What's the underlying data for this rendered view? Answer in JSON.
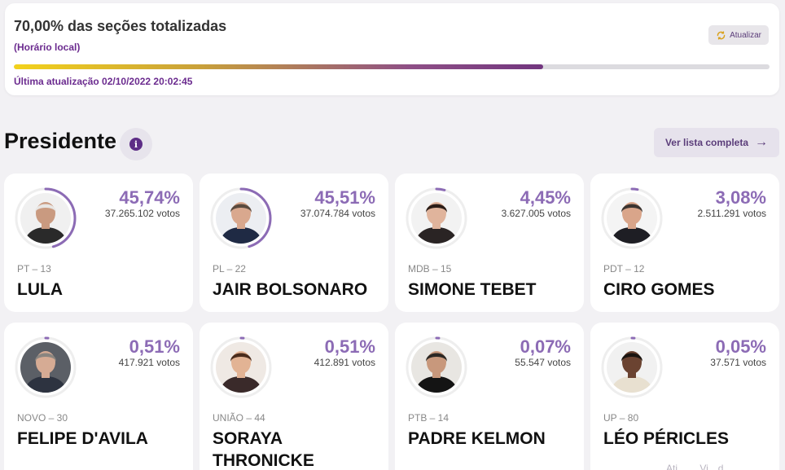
{
  "status": {
    "title": "70,00% das seções totalizadas",
    "subtitle": "(Horário local)",
    "refresh_label": "Atualizar",
    "progress_fraction": 0.7,
    "last_update": "Última atualização 02/10/2022 20:02:45"
  },
  "section": {
    "title": "Presidente",
    "info_icon": "i",
    "full_list_label": "Ver lista completa",
    "full_list_arrow": "→"
  },
  "candidates": [
    {
      "pct": "45,74%",
      "votes": "37.265.102 votos",
      "party": "PT – 13",
      "name": "LULA",
      "share": 0.4574,
      "skin": "#c99a80",
      "hair": "#e8e6e4",
      "shirt": "#2a2a2a",
      "bg": "#f0f0f0"
    },
    {
      "pct": "45,51%",
      "votes": "37.074.784 votos",
      "party": "PL – 22",
      "name": "JAIR BOLSONARO",
      "share": 0.4551,
      "skin": "#d9a88e",
      "hair": "#5a4a3e",
      "shirt": "#1f2a44",
      "bg": "#eceef2"
    },
    {
      "pct": "4,45%",
      "votes": "3.627.005 votos",
      "party": "MDB – 15",
      "name": "SIMONE TEBET",
      "share": 0.0445,
      "skin": "#e0b49c",
      "hair": "#2b1d17",
      "shirt": "#2a2424",
      "bg": "#f2f2f2"
    },
    {
      "pct": "3,08%",
      "votes": "2.511.291 votos",
      "party": "PDT – 12",
      "name": "CIRO GOMES",
      "share": 0.0308,
      "skin": "#d9a58a",
      "hair": "#3b3430",
      "shirt": "#1e1e24",
      "bg": "#f4f4f4"
    },
    {
      "pct": "0,51%",
      "votes": "417.921 votos",
      "party": "NOVO – 30",
      "name": "FELIPE D'AVILA",
      "share": 0.0051,
      "skin": "#d6ab94",
      "hair": "#8a8580",
      "shirt": "#2d3340",
      "bg": "#5b5f66"
    },
    {
      "pct": "0,51%",
      "votes": "412.891 votos",
      "party": "UNIÃO – 44",
      "name": "SORAYA THRONICKE",
      "share": 0.0051,
      "skin": "#e2b394",
      "hair": "#4a2c1c",
      "shirt": "#3a2a2a",
      "bg": "#efe9e4"
    },
    {
      "pct": "0,07%",
      "votes": "55.547 votos",
      "party": "PTB – 14",
      "name": "PADRE KELMON",
      "share": 0.0007,
      "skin": "#c8987c",
      "hair": "#2c2824",
      "shirt": "#141414",
      "bg": "#e8e6e2"
    },
    {
      "pct": "0,05%",
      "votes": "37.571 votos",
      "party": "UP – 80",
      "name": "LÉO PÉRICLES",
      "share": 0.0005,
      "skin": "#6b4331",
      "hair": "#1a1410",
      "shirt": "#e8e0d0",
      "bg": "#f1f1f1"
    }
  ],
  "footer_faint": "Atj…  …Vi…d…",
  "colors": {
    "accent": "#8c6bb5",
    "brand": "#6b2b8f",
    "ring_track": "#eeeeee"
  }
}
